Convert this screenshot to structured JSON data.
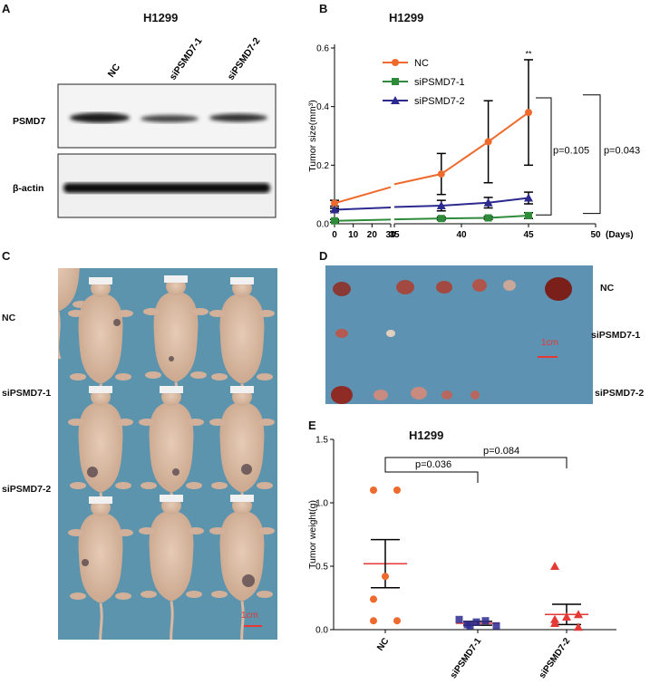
{
  "panels": {
    "a": "A",
    "b": "B",
    "c": "C",
    "d": "D",
    "e": "E"
  },
  "panel_a": {
    "title": "H1299",
    "lanes": [
      "NC",
      "siPSMD7-1",
      "siPSMD7-2"
    ],
    "rows": [
      "PSMD7",
      "β-actin"
    ],
    "band_intensity": {
      "PSMD7": [
        0.85,
        0.35,
        0.5
      ],
      "β-actin": [
        0.95,
        0.9,
        0.92
      ]
    }
  },
  "panel_c": {
    "rows": [
      "NC",
      "siPSMD7-1",
      "siPSMD7-2"
    ],
    "scale": "1cm"
  },
  "panel_d": {
    "rows": [
      "NC",
      "siPSMD7-1",
      "siPSMD7-2"
    ],
    "scale": "1cm"
  },
  "colors": {
    "nc": "#ee6a2d",
    "si1": "#2e8b3a",
    "si2": "#2c2a8f",
    "mean_line": "#e53935",
    "photo_bg": "#5c93ad"
  },
  "chart_data": [
    {
      "type": "line",
      "title": "H1299",
      "ylabel": "Tumor size(mm³)",
      "xlabel": "(Days)",
      "x_ticks": [
        "0",
        "10",
        "20",
        "30",
        "35",
        "40",
        "45",
        "50"
      ],
      "y_ticks": [
        "0.0",
        "0.2",
        "0.4",
        "0.6"
      ],
      "ylim": [
        0,
        0.6
      ],
      "xlim": [
        0,
        50
      ],
      "x_break": [
        30,
        35
      ],
      "legend_position": "top-center",
      "series": [
        {
          "name": "NC",
          "x": [
            0,
            38.5,
            42,
            45
          ],
          "y": [
            0.07,
            0.17,
            0.28,
            0.38
          ],
          "err": [
            0.01,
            0.07,
            0.14,
            0.18
          ]
        },
        {
          "name": "siPSMD7-1",
          "x": [
            0,
            38.5,
            42,
            45
          ],
          "y": [
            0.01,
            0.018,
            0.02,
            0.028
          ],
          "err": [
            0.005,
            0.005,
            0.005,
            0.01
          ]
        },
        {
          "name": "siPSMD7-2",
          "x": [
            0,
            38.5,
            42,
            45
          ],
          "y": [
            0.048,
            0.062,
            0.072,
            0.088
          ],
          "err": [
            0.005,
            0.018,
            0.018,
            0.02
          ]
        }
      ],
      "annotations": [
        "**",
        "p=0.105",
        "p=0.043"
      ]
    },
    {
      "type": "scatter",
      "title": "H1299",
      "ylabel": "Tumor weight(g)",
      "categories": [
        "NC",
        "siPSMD7-1",
        "siPSMD7-2"
      ],
      "y_ticks": [
        "0.0",
        "0.5",
        "1.0",
        "1.5"
      ],
      "ylim": [
        0,
        1.5
      ],
      "series": [
        {
          "name": "NC",
          "values": [
            1.1,
            1.1,
            0.42,
            0.24,
            0.07,
            0.07
          ],
          "mean": 0.52,
          "sem": 0.19
        },
        {
          "name": "siPSMD7-1",
          "values": [
            0.08,
            0.07,
            0.06,
            0.04,
            0.03,
            0.03
          ],
          "mean": 0.05,
          "sem": 0.015
        },
        {
          "name": "siPSMD7-2",
          "values": [
            0.5,
            0.12,
            0.1,
            0.08,
            0.05,
            0.02
          ],
          "mean": 0.12,
          "sem": 0.08
        }
      ],
      "annotations": [
        "p=0.036",
        "p=0.084"
      ]
    }
  ]
}
